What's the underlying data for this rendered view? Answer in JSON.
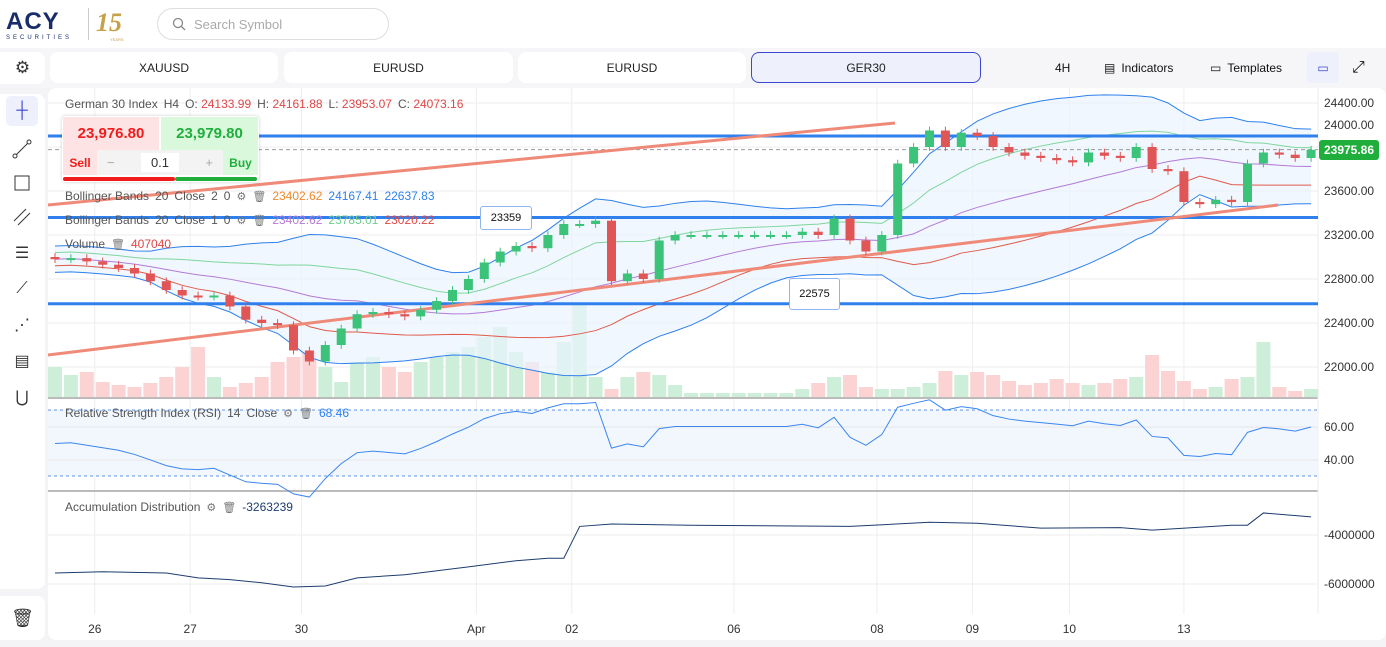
{
  "header": {
    "logo_text": "ACY",
    "logo_sub": "SECURITIES",
    "anniversary": "15",
    "anniversary_sub": "YEARS",
    "search_placeholder": "Search Symbol"
  },
  "tabs": [
    {
      "label": "XAUUSD"
    },
    {
      "label": "EURUSD"
    },
    {
      "label": "EURUSD"
    },
    {
      "label": "GER30",
      "active": true
    }
  ],
  "toolbar": {
    "timeframe": "4H",
    "indicators": "Indicators",
    "templates": "Templates"
  },
  "legend": {
    "symbol": "German 30 Index",
    "tf": "H4",
    "o_label": "O:",
    "o": "24133.99",
    "h_label": "H:",
    "h": "24161.88",
    "l_label": "L:",
    "l": "23953.07",
    "c_label": "C:",
    "c": "24073.16",
    "bb1": {
      "name": "Bollinger Bands",
      "p": "20",
      "src": "Close",
      "k": "2",
      "off": "0",
      "mid": "23402.62",
      "up": "24167.41",
      "lo": "22637.83"
    },
    "bb2": {
      "name": "Bollinger Bands",
      "p": "20",
      "src": "Close",
      "k": "1",
      "off": "0",
      "mid": "23402.62",
      "up": "23785.01",
      "lo": "23020.22"
    },
    "volume": {
      "name": "Volume",
      "value": "407040"
    },
    "rsi": {
      "name": "Relative Strength Index (RSI)",
      "p": "14",
      "src": "Close",
      "value": "68.46"
    },
    "ad": {
      "name": "Accumulation Distribution",
      "value": "-3263239"
    }
  },
  "trade": {
    "sell_price": "23,976.80",
    "buy_price": "23,979.80",
    "sell": "Sell",
    "buy": "Buy",
    "qty": "0.1",
    "minus": "−",
    "plus": "+"
  },
  "colors": {
    "up": "#3cc37a",
    "down": "#e05555",
    "bb": "#2f80ed",
    "trend": "#f08a78",
    "hline": "#2f80ed"
  },
  "chart_data": {
    "type": "candlestick",
    "price_axis": [
      "24400.00",
      "24000.00",
      "23600.00",
      "23200.00",
      "22800.00",
      "22400.00",
      "22000.00"
    ],
    "rsi_axis": [
      "60.00",
      "40.00"
    ],
    "ad_axis": [
      "-4000000",
      "-6000000"
    ],
    "dates": [
      {
        "label": "26",
        "i": 2.5
      },
      {
        "label": "27",
        "i": 8.5
      },
      {
        "label": "30",
        "i": 15.5
      },
      {
        "label": "Apr",
        "i": 26.5
      },
      {
        "label": "02",
        "i": 32.5
      },
      {
        "label": "06",
        "i": 42.7
      },
      {
        "label": "08",
        "i": 51.7
      },
      {
        "label": "09",
        "i": 57.7
      },
      {
        "label": "10",
        "i": 63.8
      },
      {
        "label": "13",
        "i": 71
      }
    ],
    "current_price": "23975.86",
    "hlines": [
      {
        "price": 24100
      },
      {
        "price": 23359,
        "label": "23359"
      },
      {
        "price": 22575,
        "label": "22575"
      }
    ],
    "closes": [
      22980,
      22990,
      22960,
      22930,
      22900,
      22850,
      22780,
      22700,
      22650,
      22640,
      22650,
      22550,
      22430,
      22400,
      22380,
      22150,
      22050,
      22200,
      22350,
      22480,
      22500,
      22480,
      22460,
      22520,
      22600,
      22700,
      22800,
      22950,
      23050,
      23100,
      23080,
      23200,
      23300,
      23300,
      23330,
      22780,
      22850,
      22800,
      23150,
      23200,
      23200,
      23200,
      23200,
      23200,
      23200,
      23200,
      23200,
      23230,
      23200,
      23350,
      23150,
      23050,
      23200,
      23850,
      24000,
      24150,
      24000,
      24130,
      24100,
      24000,
      23950,
      23920,
      23900,
      23880,
      23860,
      23950,
      23920,
      23900,
      24000,
      23800,
      23780,
      23500,
      23480,
      23520,
      23500,
      23850,
      23950,
      23930,
      23900,
      23975
    ],
    "volumes": [
      30,
      22,
      25,
      15,
      12,
      10,
      14,
      20,
      30,
      50,
      20,
      10,
      14,
      20,
      35,
      40,
      45,
      30,
      15,
      35,
      40,
      30,
      25,
      35,
      40,
      45,
      50,
      60,
      70,
      45,
      35,
      25,
      55,
      92,
      20,
      8,
      20,
      25,
      22,
      12,
      4,
      4,
      4,
      4,
      4,
      4,
      4,
      8,
      14,
      20,
      22,
      10,
      8,
      8,
      10,
      14,
      26,
      22,
      25,
      22,
      16,
      12,
      14,
      18,
      14,
      12,
      14,
      18,
      20,
      42,
      26,
      16,
      8,
      10,
      18,
      20,
      55,
      10,
      6,
      8
    ],
    "ad": [
      [
        0,
        -5.55
      ],
      [
        3,
        -5.5
      ],
      [
        7,
        -5.55
      ],
      [
        9,
        -5.75
      ],
      [
        11,
        -5.82
      ],
      [
        13,
        -5.95
      ],
      [
        15,
        -6.12
      ],
      [
        17,
        -6.08
      ],
      [
        19,
        -5.75
      ],
      [
        22,
        -5.62
      ],
      [
        26,
        -5.3
      ],
      [
        29,
        -5.05
      ],
      [
        31,
        -4.95
      ],
      [
        32,
        -4.95
      ],
      [
        33,
        -3.65
      ],
      [
        35,
        -3.55
      ],
      [
        40,
        -3.6
      ],
      [
        50,
        -3.65
      ],
      [
        55,
        -3.48
      ],
      [
        58,
        -3.52
      ],
      [
        62,
        -3.72
      ],
      [
        67,
        -3.7
      ],
      [
        69,
        -3.8
      ],
      [
        74,
        -3.6
      ],
      [
        75,
        -3.6
      ],
      [
        76,
        -3.1
      ],
      [
        79,
        -3.26
      ]
    ]
  }
}
